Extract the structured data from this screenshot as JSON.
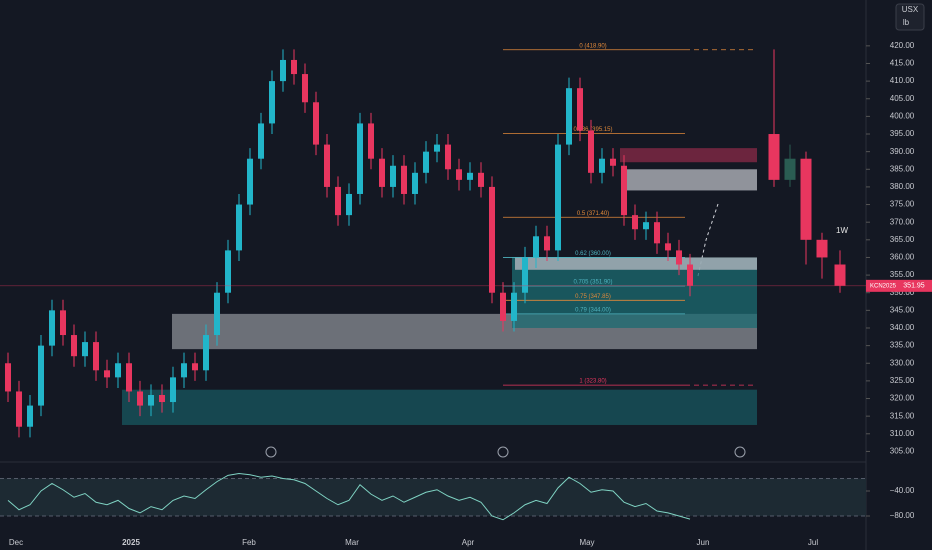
{
  "header": {
    "currency": "USX",
    "unit": "lb",
    "interval": "1W",
    "symbol": "KCN2025"
  },
  "chart_data": {
    "type": "candlestick",
    "ylim": [
      302,
      433
    ],
    "yticks": [
      {
        "value": 305,
        "label": "305.00"
      },
      {
        "value": 310,
        "label": "310.00"
      },
      {
        "value": 315,
        "label": "315.00"
      },
      {
        "value": 320,
        "label": "320.00"
      },
      {
        "value": 325,
        "label": "325.00"
      },
      {
        "value": 330,
        "label": "330.00"
      },
      {
        "value": 335,
        "label": "335.00"
      },
      {
        "value": 340,
        "label": "340.00"
      },
      {
        "value": 345,
        "label": "345.00"
      },
      {
        "value": 350,
        "label": "350.00"
      },
      {
        "value": 355,
        "label": "355.00"
      },
      {
        "value": 360,
        "label": "360.00"
      },
      {
        "value": 365,
        "label": "365.00"
      },
      {
        "value": 370,
        "label": "370.00"
      },
      {
        "value": 375,
        "label": "375.00"
      },
      {
        "value": 380,
        "label": "380.00"
      },
      {
        "value": 385,
        "label": "385.00"
      },
      {
        "value": 390,
        "label": "390.00"
      },
      {
        "value": 395,
        "label": "395.00"
      },
      {
        "value": 400,
        "label": "400.00"
      },
      {
        "value": 405,
        "label": "405.00"
      },
      {
        "value": 410,
        "label": "410.00"
      },
      {
        "value": 415,
        "label": "415.00"
      },
      {
        "value": 420,
        "label": "420.00"
      }
    ],
    "x_labels": [
      "Dec",
      "2025",
      "Feb",
      "Mar",
      "Apr",
      "May",
      "Jun",
      "Jul"
    ],
    "up_color": "#22b5c9",
    "down_color": "#e8365f",
    "open": [
      330,
      322,
      312,
      318,
      335,
      345,
      338,
      332,
      336,
      328,
      326,
      330,
      322,
      318,
      321,
      319,
      326,
      330,
      328,
      338,
      350,
      362,
      375,
      388,
      398,
      410,
      416,
      412,
      404,
      392,
      380,
      372,
      378,
      398,
      388,
      380,
      386,
      378,
      384,
      390,
      392,
      385,
      382,
      384,
      380,
      350,
      342,
      350,
      360,
      366,
      362,
      392,
      408,
      396,
      384,
      388,
      386,
      372,
      368,
      370,
      364,
      362,
      358
    ],
    "high": [
      333,
      325,
      321,
      338,
      348,
      348,
      341,
      339,
      339,
      331,
      333,
      333,
      325,
      324,
      324,
      329,
      333,
      333,
      341,
      353,
      365,
      378,
      391,
      401,
      413,
      419,
      419,
      415,
      407,
      395,
      383,
      381,
      401,
      401,
      391,
      389,
      389,
      387,
      393,
      395,
      395,
      388,
      387,
      387,
      383,
      353,
      353,
      363,
      369,
      369,
      395,
      411,
      411,
      399,
      391,
      391,
      389,
      375,
      373,
      373,
      367,
      365,
      361
    ],
    "low": [
      319,
      309,
      309,
      315,
      332,
      335,
      329,
      329,
      325,
      323,
      323,
      319,
      315,
      315,
      316,
      316,
      323,
      325,
      325,
      335,
      347,
      359,
      372,
      385,
      395,
      407,
      409,
      401,
      389,
      377,
      369,
      369,
      375,
      385,
      377,
      377,
      375,
      375,
      381,
      387,
      382,
      379,
      379,
      377,
      347,
      339,
      339,
      347,
      357,
      359,
      359,
      389,
      393,
      381,
      381,
      383,
      369,
      365,
      365,
      361,
      359,
      355,
      349
    ],
    "close": [
      322,
      312,
      318,
      335,
      345,
      338,
      332,
      336,
      328,
      326,
      330,
      322,
      318,
      321,
      319,
      326,
      330,
      328,
      338,
      350,
      362,
      375,
      388,
      398,
      410,
      416,
      412,
      404,
      392,
      380,
      372,
      378,
      398,
      388,
      380,
      386,
      378,
      384,
      390,
      392,
      385,
      382,
      384,
      380,
      350,
      342,
      350,
      360,
      366,
      362,
      392,
      408,
      396,
      384,
      388,
      386,
      372,
      368,
      370,
      364,
      362,
      358,
      352
    ],
    "weekly": {
      "open": [
        395,
        382,
        388,
        365,
        358
      ],
      "high": [
        419,
        392,
        390,
        367,
        362
      ],
      "low": [
        380,
        380,
        358,
        354,
        350
      ],
      "close": [
        382,
        388,
        365,
        360,
        352
      ],
      "up_color": "#2a5c52",
      "down_color": "#e8365f"
    },
    "last_price": 351.95,
    "fib_levels": [
      {
        "value": 418.9,
        "label": "0 (418.90)",
        "color": "#e0893a"
      },
      {
        "value": 395.15,
        "label": "0.236 (395.15)",
        "color": "#e0893a"
      },
      {
        "value": 371.4,
        "label": "0.5 (371.40)",
        "color": "#e0893a"
      },
      {
        "value": 360,
        "label": "0.62 (360.00)",
        "color": "#4fb3bf"
      },
      {
        "value": 351.9,
        "label": "0.705 (351.90)",
        "color": "#4fb3bf"
      },
      {
        "value": 347.85,
        "label": "0.75 (347.85)",
        "color": "#e0893a"
      },
      {
        "value": 344,
        "label": "0.79 (344.00)",
        "color": "#4fb3bf"
      },
      {
        "value": 323.8,
        "label": "1 (323.80)",
        "color": "#e8365f"
      }
    ],
    "zones": [
      {
        "low": 312.5,
        "high": 322.5,
        "color": "#175760"
      },
      {
        "low": 334,
        "high": 344,
        "color": "#8a8d96"
      },
      {
        "low": 340,
        "high": 360,
        "color": "#1b6b72"
      },
      {
        "low": 356.5,
        "high": 360,
        "color": "#b9bcc4"
      },
      {
        "low": 379,
        "high": 385,
        "color": "#b9bcc4"
      },
      {
        "low": 387,
        "high": 391,
        "color": "#8a2a48"
      }
    ],
    "oscillator": {
      "ylim": [
        -100,
        0
      ],
      "yticks": [
        {
          "value": -40,
          "label": "−40.00"
        },
        {
          "value": -80,
          "label": "−80.00"
        }
      ],
      "bands": [
        -20,
        -80
      ],
      "color": "#7fd3c3",
      "values": [
        -55,
        -70,
        -62,
        -40,
        -28,
        -38,
        -50,
        -44,
        -58,
        -62,
        -55,
        -68,
        -75,
        -65,
        -70,
        -55,
        -48,
        -52,
        -38,
        -25,
        -15,
        -12,
        -14,
        -18,
        -16,
        -20,
        -22,
        -28,
        -40,
        -52,
        -62,
        -55,
        -30,
        -45,
        -55,
        -48,
        -58,
        -50,
        -42,
        -38,
        -48,
        -55,
        -50,
        -58,
        -80,
        -86,
        -75,
        -62,
        -55,
        -60,
        -35,
        -18,
        -28,
        -42,
        -38,
        -40,
        -58,
        -65,
        -60,
        -72,
        -75,
        -80,
        -85
      ]
    }
  }
}
